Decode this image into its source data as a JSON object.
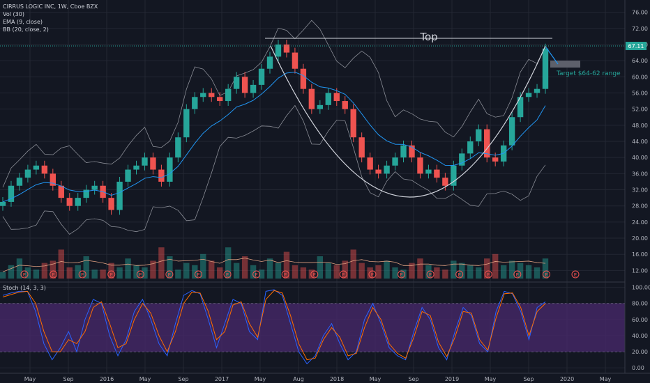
{
  "legend": {
    "symbol": "CIRRUS LOGIC INC, 1W, Cboe BZX",
    "vol": "Vol (30)",
    "ema": "EMA (9, close)",
    "bb": "BB (20, close, 2)",
    "stoch": "Stoch (14, 3, 3)"
  },
  "colors": {
    "background": "#131722",
    "up": "#26a69a",
    "down": "#ef5350",
    "grid": "#232733",
    "ema": "#2196f3",
    "bb": "#8a8d96",
    "stoch_k": "#2962ff",
    "stoch_d": "#ff6d00",
    "stoch_band": "#4a2a6e",
    "price_tag": "#26a69a"
  },
  "annotations": {
    "top_label": "Top",
    "target_label": "Target $64-62 range",
    "price_tag": "67.11",
    "earnings_marker": "E"
  },
  "chart_data": [
    {
      "type": "candlestick",
      "title": "CIRRUS LOGIC INC, 1W, Cboe BZX",
      "x_ticks": [
        "May",
        "Sep",
        "2016",
        "May",
        "Sep",
        "2017",
        "May",
        "Aug",
        "2018",
        "May",
        "Sep",
        "2019",
        "May",
        "Sep",
        "2020",
        "May"
      ],
      "y_ticks": [
        12,
        16,
        20,
        24,
        28,
        32,
        36,
        40,
        44,
        48,
        52,
        56,
        60,
        64,
        68,
        72,
        76
      ],
      "ylim": [
        10,
        78
      ],
      "last_price": 67.11,
      "top_level": 70,
      "target_range": [
        62,
        64
      ],
      "close_series": [
        29,
        33,
        35,
        37,
        38,
        36,
        33,
        30,
        28,
        30,
        32,
        33,
        30,
        27,
        34,
        37,
        38,
        40,
        37,
        34,
        40,
        45,
        52,
        55,
        56,
        55,
        54,
        57,
        60,
        56,
        58,
        62,
        65,
        68,
        66,
        62,
        57,
        52,
        53,
        56,
        54,
        52,
        45,
        40,
        37,
        36,
        38,
        40,
        43,
        40,
        36,
        37,
        35,
        33,
        38,
        41,
        44,
        47,
        40,
        39,
        43,
        50,
        55,
        56,
        57,
        67
      ],
      "earnings_markers": 20
    },
    {
      "type": "bar",
      "title": "Vol (30)",
      "values": [
        11,
        14,
        17,
        13,
        12,
        15,
        16,
        21,
        13,
        14,
        18,
        12,
        12,
        15,
        13,
        17,
        14,
        13,
        16,
        22,
        18,
        12,
        15,
        14,
        19,
        16,
        13,
        22,
        15,
        18,
        14,
        12,
        17,
        15,
        20,
        14,
        13,
        12,
        18,
        15,
        14,
        16,
        21,
        15,
        13,
        14,
        16,
        13,
        12,
        15,
        17,
        14,
        13,
        12,
        16,
        15,
        14,
        13,
        17,
        19,
        14,
        16,
        15,
        14,
        13,
        17
      ]
    },
    {
      "type": "line",
      "title": "Stoch (14, 3, 3)",
      "y_ticks": [
        0,
        20,
        40,
        60,
        80,
        100
      ],
      "ylim": [
        -5,
        104
      ],
      "band": [
        20,
        80
      ],
      "series": [
        {
          "name": "%K",
          "values": [
            90,
            93,
            95,
            95,
            70,
            30,
            10,
            25,
            45,
            20,
            60,
            85,
            80,
            40,
            15,
            35,
            70,
            85,
            60,
            30,
            15,
            55,
            90,
            96,
            92,
            60,
            25,
            55,
            85,
            80,
            45,
            35,
            95,
            97,
            90,
            55,
            20,
            5,
            15,
            40,
            55,
            30,
            10,
            20,
            60,
            80,
            55,
            25,
            15,
            10,
            45,
            75,
            60,
            25,
            10,
            45,
            75,
            65,
            30,
            20,
            70,
            95,
            92,
            70,
            35,
            75,
            82
          ]
        },
        {
          "name": "%D",
          "values": [
            88,
            91,
            94,
            95,
            80,
            45,
            20,
            20,
            35,
            30,
            45,
            75,
            82,
            55,
            25,
            30,
            60,
            80,
            68,
            40,
            20,
            45,
            80,
            94,
            93,
            70,
            35,
            45,
            78,
            82,
            55,
            38,
            85,
            96,
            93,
            65,
            30,
            10,
            12,
            35,
            50,
            38,
            15,
            18,
            50,
            75,
            60,
            30,
            18,
            12,
            38,
            70,
            65,
            32,
            14,
            38,
            70,
            68,
            35,
            22,
            62,
            92,
            93,
            75,
            40,
            70,
            80
          ]
        }
      ]
    }
  ]
}
